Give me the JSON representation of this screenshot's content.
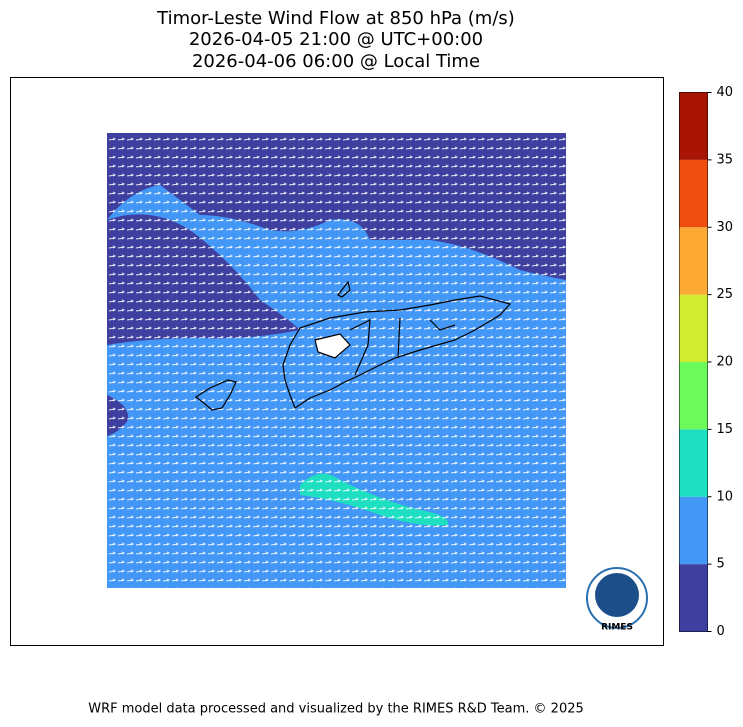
{
  "header": {
    "title": [
      "Timor-Leste Wind Flow at 850 hPa (m/s)",
      "2026-04-05 21:00 @ UTC+00:00",
      "2026-04-06 06:00 @ Local Time"
    ]
  },
  "colorbar": {
    "lim": [
      0,
      40
    ],
    "ticks": [
      0,
      5,
      10,
      15,
      20,
      25,
      30,
      35,
      40
    ],
    "colors": [
      "#3f3fa0",
      "#4397f6",
      "#1ee0c0",
      "#6bfa5a",
      "#cfec30",
      "#fcaa33",
      "#ee4f10",
      "#a81505"
    ]
  },
  "logo": {
    "text": "RIMES"
  },
  "footer": "WRF model data processed and visualized by the RIMES R&D Team. © 2025"
}
